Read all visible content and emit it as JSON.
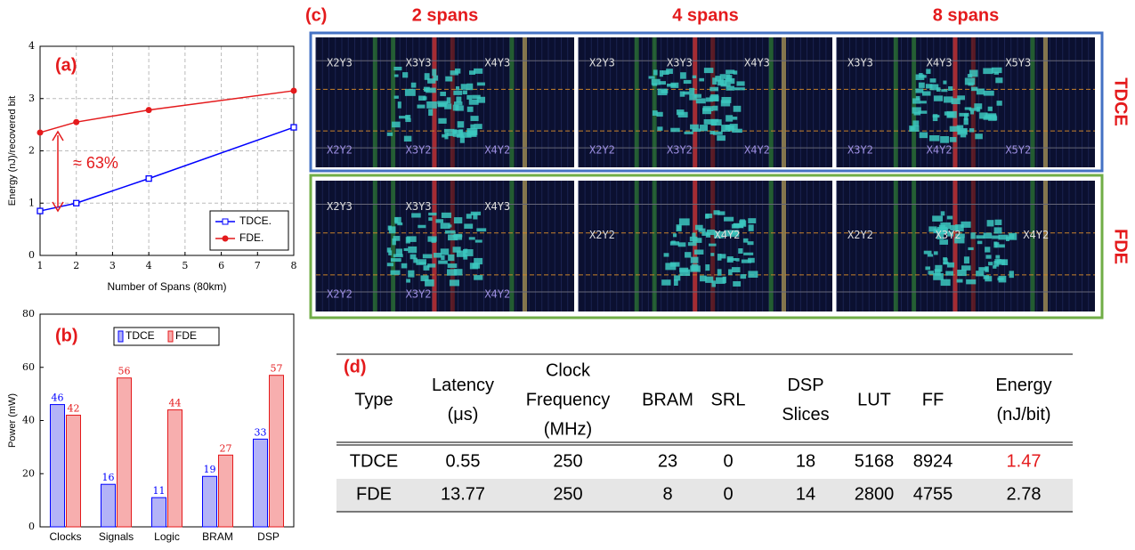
{
  "chart_data": [
    {
      "type": "line",
      "label": "(a)",
      "x": [
        1,
        2,
        4,
        8
      ],
      "xlim": [
        1,
        8
      ],
      "xticks": [
        1,
        2,
        3,
        4,
        5,
        6,
        7,
        8
      ],
      "ylim": [
        0,
        4
      ],
      "yticks": [
        0,
        1,
        2,
        3,
        4
      ],
      "x_label": "Number of Spans (80km)",
      "y_label": "Energy (nJ)/recovered bit",
      "grid": true,
      "legend": "lower right",
      "annotation": "≈ 63%",
      "series": [
        {
          "name": "TDCE.",
          "color": "#0000ff",
          "marker": "square",
          "values": [
            0.85,
            1.0,
            1.47,
            2.45
          ]
        },
        {
          "name": "FDE.",
          "color": "#e41a1c",
          "marker": "circle",
          "values": [
            2.35,
            2.55,
            2.78,
            3.15
          ]
        }
      ]
    },
    {
      "type": "bar",
      "label": "(b)",
      "categories": [
        "Clocks",
        "Signals",
        "Logic",
        "BRAM",
        "DSP"
      ],
      "ylim": [
        0,
        80
      ],
      "yticks": [
        0,
        20,
        40,
        60,
        80
      ],
      "y_label": "Power (mW)",
      "legend": "upper center",
      "series": [
        {
          "name": "TDCE",
          "color": "#0000ff",
          "fill": "#b3b3f7",
          "values": [
            46,
            16,
            11,
            19,
            33
          ]
        },
        {
          "name": "FDE",
          "color": "#e41a1c",
          "fill": "#f7aeae",
          "values": [
            42,
            56,
            44,
            27,
            57
          ]
        }
      ]
    }
  ],
  "panel_c": {
    "label": "(c)",
    "columns": [
      "2 spans",
      "4 spans",
      "8 spans"
    ],
    "rows": [
      {
        "name": "TDCE",
        "color": "#4472c4",
        "images": [
          [
            "X2Y3",
            "X3Y3",
            "X4Y3",
            "X2Y2",
            "X3Y2",
            "X4Y2"
          ],
          [
            "X2Y3",
            "X3Y3",
            "X4Y3",
            "X2Y2",
            "X3Y2",
            "X4Y2"
          ],
          [
            "X3Y3",
            "X4Y3",
            "X5Y3",
            "X3Y2",
            "X4Y2",
            "X5Y2"
          ]
        ]
      },
      {
        "name": "FDE",
        "color": "#70ad47",
        "images": [
          [
            "X2Y3",
            "X3Y3",
            "X4Y3",
            "X2Y2",
            "X3Y2",
            "X4Y2"
          ],
          [
            "X2Y2",
            "X4Y2"
          ],
          [
            "X2Y2",
            "X3Y2",
            "X4Y2"
          ]
        ]
      }
    ]
  },
  "table": {
    "label": "(d)",
    "header": [
      [
        "Type"
      ],
      [
        "Latency",
        "(μs)"
      ],
      [
        "Clock",
        "Frequency",
        "(MHz)"
      ],
      [
        "BRAM"
      ],
      [
        "SRL"
      ],
      [
        "DSP",
        "Slices"
      ],
      [
        "LUT"
      ],
      [
        "FF"
      ],
      [
        "Energy",
        "(nJ/bit)"
      ]
    ],
    "rows": [
      [
        "TDCE",
        "0.55",
        "250",
        "23",
        "0",
        "18",
        "5168",
        "8924",
        "1.47"
      ],
      [
        "FDE",
        "13.77",
        "250",
        "8",
        "0",
        "14",
        "2800",
        "4755",
        "2.78"
      ]
    ]
  }
}
